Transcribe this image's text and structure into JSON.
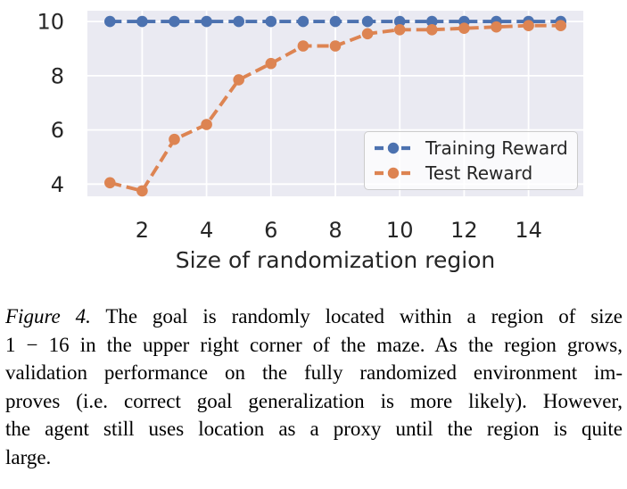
{
  "figure": {
    "caption_label": "Figure 4.",
    "caption_lines": [
      "The goal is randomly located within a region of size",
      "1 − 16 in the upper right corner of the maze. As the region grows,",
      "validation performance on the fully randomized environment im-",
      "proves (i.e. correct goal generalization is more likely). However,",
      "the agent still uses location as a proxy until the region is quite",
      "large."
    ]
  },
  "chart_data": {
    "type": "line",
    "title": "",
    "xlabel": "Size of randomization region",
    "ylabel": "",
    "x": [
      1,
      2,
      3,
      4,
      5,
      6,
      7,
      8,
      9,
      10,
      11,
      12,
      13,
      14,
      15
    ],
    "series": [
      {
        "name": "Training Reward",
        "color": "#4C72B0",
        "values": [
          10,
          10,
          10,
          10,
          10,
          10,
          10,
          10,
          10,
          10,
          10,
          10,
          10,
          10,
          10
        ]
      },
      {
        "name": "Test Reward",
        "color": "#DD8452",
        "values": [
          4.05,
          3.75,
          5.65,
          6.2,
          7.85,
          8.45,
          9.1,
          9.1,
          9.55,
          9.7,
          9.7,
          9.75,
          9.8,
          9.85,
          9.85
        ]
      }
    ],
    "xticks": [
      2,
      4,
      6,
      8,
      10,
      12,
      14
    ],
    "yticks": [
      4,
      6,
      8,
      10
    ],
    "xlim": [
      0.3,
      15.7
    ],
    "ylim": [
      3.55,
      10.4
    ],
    "grid": true,
    "line_style": "dashed",
    "marker": "circle",
    "legend_position": "inside lower right",
    "plot_bg": "#EAEAF2",
    "grid_color": "#FFFFFF",
    "tick_color": "#262626"
  }
}
